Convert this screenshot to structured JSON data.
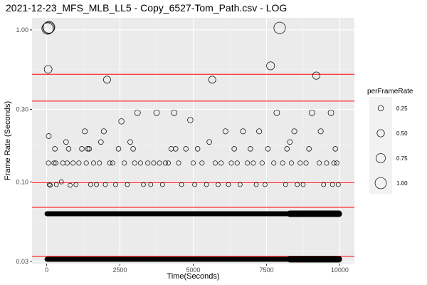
{
  "chart_data": {
    "type": "scatter",
    "title": "2021-12-23_MFS_MLB_LL5 - Copy_6527-Tom_Path.csv - LOG",
    "xlabel": "Time(Seconds)",
    "ylabel": "Frame Rate (Seconds)",
    "xlim": [
      -500,
      10500
    ],
    "ylim": [
      0.029,
      1.2
    ],
    "y_scale": "log10",
    "x_ticks": [
      0,
      2500,
      5000,
      7500,
      10000
    ],
    "x_tick_labels": [
      "0",
      "2500",
      "5000",
      "7500",
      "10000"
    ],
    "y_ticks": [
      0.03,
      0.1,
      0.3,
      1.0
    ],
    "y_tick_labels": [
      "0.03",
      "0.10",
      "0.30",
      "1.00"
    ],
    "hlines": [
      0.0325,
      0.068,
      0.099,
      0.34,
      0.51
    ],
    "hline_color": "#ff0000",
    "grid": true,
    "panel_background": "#ebebeb",
    "legend": {
      "title": "perFrameRate",
      "position": "right",
      "entries": [
        {
          "label": "0.25",
          "value": 0.25
        },
        {
          "label": "0.50",
          "value": 0.5
        },
        {
          "label": "0.75",
          "value": 0.75
        },
        {
          "label": "1.00",
          "value": 1.0
        }
      ]
    },
    "bands": [
      {
        "x_start": 0,
        "x_end": 10000,
        "y": 0.0617
      },
      {
        "x_start": 0,
        "x_end": 10000,
        "y": 0.031
      }
    ],
    "series": [
      {
        "points": [
          {
            "x": 30,
            "y": 1.02,
            "size": 1.02
          },
          {
            "x": 60,
            "y": 1.03,
            "size": 1.03
          },
          {
            "x": 80,
            "y": 1.04,
            "size": 1.04
          },
          {
            "x": 50,
            "y": 0.55,
            "size": 0.55
          },
          {
            "x": 70,
            "y": 0.2,
            "size": 0.2
          },
          {
            "x": 60,
            "y": 0.133,
            "size": 0.133
          },
          {
            "x": 90,
            "y": 0.096,
            "size": 0.096
          },
          {
            "x": 120,
            "y": 0.095,
            "size": 0.095
          },
          {
            "x": 250,
            "y": 0.133,
            "size": 0.133
          },
          {
            "x": 280,
            "y": 0.165,
            "size": 0.165
          },
          {
            "x": 310,
            "y": 0.133,
            "size": 0.133
          },
          {
            "x": 330,
            "y": 0.096,
            "size": 0.096
          },
          {
            "x": 500,
            "y": 0.1,
            "size": 0.1
          },
          {
            "x": 550,
            "y": 0.133,
            "size": 0.133
          },
          {
            "x": 660,
            "y": 0.183,
            "size": 0.183
          },
          {
            "x": 700,
            "y": 0.133,
            "size": 0.133
          },
          {
            "x": 750,
            "y": 0.165,
            "size": 0.165
          },
          {
            "x": 800,
            "y": 0.095,
            "size": 0.095
          },
          {
            "x": 900,
            "y": 0.133,
            "size": 0.133
          },
          {
            "x": 1000,
            "y": 0.096,
            "size": 0.096
          },
          {
            "x": 1100,
            "y": 0.133,
            "size": 0.133
          },
          {
            "x": 1200,
            "y": 0.165,
            "size": 0.165
          },
          {
            "x": 1300,
            "y": 0.215,
            "size": 0.215
          },
          {
            "x": 1350,
            "y": 0.133,
            "size": 0.133
          },
          {
            "x": 1400,
            "y": 0.165,
            "size": 0.165
          },
          {
            "x": 1450,
            "y": 0.165,
            "size": 0.165
          },
          {
            "x": 1500,
            "y": 0.096,
            "size": 0.096
          },
          {
            "x": 1600,
            "y": 0.133,
            "size": 0.133
          },
          {
            "x": 1700,
            "y": 0.096,
            "size": 0.096
          },
          {
            "x": 1800,
            "y": 0.133,
            "size": 0.133
          },
          {
            "x": 1850,
            "y": 0.183,
            "size": 0.183
          },
          {
            "x": 1950,
            "y": 0.215,
            "size": 0.215
          },
          {
            "x": 2000,
            "y": 0.096,
            "size": 0.096
          },
          {
            "x": 2060,
            "y": 0.47,
            "size": 0.47
          },
          {
            "x": 2150,
            "y": 0.133,
            "size": 0.133
          },
          {
            "x": 2250,
            "y": 0.133,
            "size": 0.133
          },
          {
            "x": 2350,
            "y": 0.096,
            "size": 0.096
          },
          {
            "x": 2450,
            "y": 0.165,
            "size": 0.165
          },
          {
            "x": 2550,
            "y": 0.25,
            "size": 0.25
          },
          {
            "x": 2650,
            "y": 0.133,
            "size": 0.133
          },
          {
            "x": 2750,
            "y": 0.096,
            "size": 0.096
          },
          {
            "x": 2850,
            "y": 0.183,
            "size": 0.183
          },
          {
            "x": 2950,
            "y": 0.165,
            "size": 0.165
          },
          {
            "x": 3000,
            "y": 0.133,
            "size": 0.133
          },
          {
            "x": 3100,
            "y": 0.285,
            "size": 0.285
          },
          {
            "x": 3200,
            "y": 0.133,
            "size": 0.133
          },
          {
            "x": 3300,
            "y": 0.096,
            "size": 0.096
          },
          {
            "x": 3450,
            "y": 0.133,
            "size": 0.133
          },
          {
            "x": 3550,
            "y": 0.096,
            "size": 0.096
          },
          {
            "x": 3650,
            "y": 0.133,
            "size": 0.133
          },
          {
            "x": 3750,
            "y": 0.285,
            "size": 0.285
          },
          {
            "x": 3850,
            "y": 0.133,
            "size": 0.133
          },
          {
            "x": 3950,
            "y": 0.096,
            "size": 0.096
          },
          {
            "x": 4050,
            "y": 0.133,
            "size": 0.133
          },
          {
            "x": 4150,
            "y": 0.133,
            "size": 0.133
          },
          {
            "x": 4250,
            "y": 0.165,
            "size": 0.165
          },
          {
            "x": 4350,
            "y": 0.285,
            "size": 0.285
          },
          {
            "x": 4400,
            "y": 0.165,
            "size": 0.165
          },
          {
            "x": 4500,
            "y": 0.133,
            "size": 0.133
          },
          {
            "x": 4600,
            "y": 0.096,
            "size": 0.096
          },
          {
            "x": 4750,
            "y": 0.165,
            "size": 0.165
          },
          {
            "x": 4900,
            "y": 0.255,
            "size": 0.255
          },
          {
            "x": 5000,
            "y": 0.133,
            "size": 0.133
          },
          {
            "x": 5050,
            "y": 0.096,
            "size": 0.096
          },
          {
            "x": 5150,
            "y": 0.165,
            "size": 0.165
          },
          {
            "x": 5300,
            "y": 0.133,
            "size": 0.133
          },
          {
            "x": 5450,
            "y": 0.096,
            "size": 0.096
          },
          {
            "x": 5550,
            "y": 0.183,
            "size": 0.183
          },
          {
            "x": 5650,
            "y": 0.47,
            "size": 0.47
          },
          {
            "x": 5750,
            "y": 0.133,
            "size": 0.133
          },
          {
            "x": 5850,
            "y": 0.096,
            "size": 0.096
          },
          {
            "x": 5950,
            "y": 0.133,
            "size": 0.133
          },
          {
            "x": 6100,
            "y": 0.215,
            "size": 0.215
          },
          {
            "x": 6200,
            "y": 0.096,
            "size": 0.096
          },
          {
            "x": 6300,
            "y": 0.133,
            "size": 0.133
          },
          {
            "x": 6400,
            "y": 0.165,
            "size": 0.165
          },
          {
            "x": 6500,
            "y": 0.133,
            "size": 0.133
          },
          {
            "x": 6600,
            "y": 0.096,
            "size": 0.096
          },
          {
            "x": 6700,
            "y": 0.215,
            "size": 0.215
          },
          {
            "x": 6850,
            "y": 0.133,
            "size": 0.133
          },
          {
            "x": 6950,
            "y": 0.165,
            "size": 0.165
          },
          {
            "x": 7050,
            "y": 0.133,
            "size": 0.133
          },
          {
            "x": 7150,
            "y": 0.096,
            "size": 0.096
          },
          {
            "x": 7250,
            "y": 0.215,
            "size": 0.215
          },
          {
            "x": 7350,
            "y": 0.133,
            "size": 0.133
          },
          {
            "x": 7450,
            "y": 0.096,
            "size": 0.096
          },
          {
            "x": 7550,
            "y": 0.165,
            "size": 0.165
          },
          {
            "x": 7640,
            "y": 0.58,
            "size": 0.58
          },
          {
            "x": 7750,
            "y": 0.133,
            "size": 0.133
          },
          {
            "x": 7850,
            "y": 0.285,
            "size": 0.285
          },
          {
            "x": 7950,
            "y": 1.03,
            "size": 1.03
          },
          {
            "x": 8050,
            "y": 0.133,
            "size": 0.133
          },
          {
            "x": 8150,
            "y": 0.096,
            "size": 0.096
          },
          {
            "x": 8200,
            "y": 0.165,
            "size": 0.165
          },
          {
            "x": 8300,
            "y": 0.183,
            "size": 0.183
          },
          {
            "x": 8350,
            "y": 0.133,
            "size": 0.133
          },
          {
            "x": 8450,
            "y": 0.215,
            "size": 0.215
          },
          {
            "x": 8550,
            "y": 0.096,
            "size": 0.096
          },
          {
            "x": 8650,
            "y": 0.133,
            "size": 0.133
          },
          {
            "x": 8750,
            "y": 0.096,
            "size": 0.096
          },
          {
            "x": 8850,
            "y": 0.133,
            "size": 0.133
          },
          {
            "x": 8950,
            "y": 0.165,
            "size": 0.165
          },
          {
            "x": 9050,
            "y": 0.285,
            "size": 0.285
          },
          {
            "x": 9200,
            "y": 0.5,
            "size": 0.5
          },
          {
            "x": 9300,
            "y": 0.133,
            "size": 0.133
          },
          {
            "x": 9350,
            "y": 0.215,
            "size": 0.215
          },
          {
            "x": 9450,
            "y": 0.096,
            "size": 0.096
          },
          {
            "x": 9550,
            "y": 0.133,
            "size": 0.133
          },
          {
            "x": 9700,
            "y": 0.285,
            "size": 0.285
          },
          {
            "x": 9750,
            "y": 0.096,
            "size": 0.096
          },
          {
            "x": 9800,
            "y": 0.133,
            "size": 0.133
          },
          {
            "x": 9850,
            "y": 0.165,
            "size": 0.165
          },
          {
            "x": 9900,
            "y": 0.133,
            "size": 0.133
          },
          {
            "x": 9950,
            "y": 0.096,
            "size": 0.096
          }
        ]
      }
    ]
  }
}
